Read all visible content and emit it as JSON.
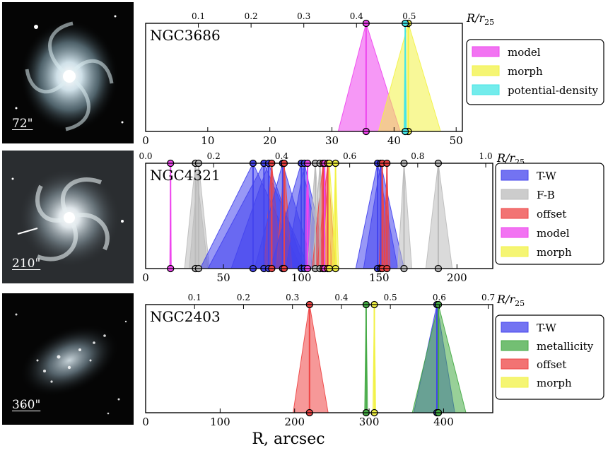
{
  "figure": {
    "xlabel": "R, arcsec"
  },
  "chart_data": [
    {
      "type": "range-triangles",
      "galaxy": "NGC3686",
      "image_scale": "72\"",
      "xlim": [
        0,
        51
      ],
      "xticks": [
        0,
        10,
        20,
        30,
        40,
        50
      ],
      "top_axis_label": "R/r25",
      "top_ticks": [
        0.1,
        0.2,
        0.3,
        0.4,
        0.5
      ],
      "top_tick_labels": [
        "0.1",
        "0.2",
        "0.3",
        "0.4",
        "0.5"
      ],
      "top_scale_per_unit": 0.01178,
      "legend": [
        {
          "label": "model",
          "color": "#ee44ee"
        },
        {
          "label": "morph",
          "color": "#f2f244"
        },
        {
          "label": "potential-density",
          "color": "#44e6e6"
        }
      ],
      "markers": [
        {
          "method": "model",
          "color": "#ee44ee",
          "r": 35.5,
          "lo": 31,
          "hi": 41
        },
        {
          "method": "morph",
          "color": "#f2f244",
          "r": 42.3,
          "lo": 37.5,
          "hi": 47.5
        },
        {
          "method": "potential-density",
          "color": "#44e6e6",
          "r": 41.8,
          "lo": 41.6,
          "hi": 42
        }
      ]
    },
    {
      "type": "range-triangles",
      "galaxy": "NGC4321",
      "image_scale": "210\"",
      "xlim": [
        0,
        223
      ],
      "xticks": [
        0,
        50,
        100,
        150,
        200
      ],
      "top_axis_label": "R/r25",
      "top_ticks": [
        0,
        0.2,
        0.4,
        0.6,
        0.8,
        1.0
      ],
      "top_tick_labels": [
        "0.0",
        "0.2",
        "0.4",
        "0.6",
        "0.8",
        "1.0"
      ],
      "top_scale_per_unit": 0.004577,
      "legend": [
        {
          "label": "T-W",
          "color": "#4444ee"
        },
        {
          "label": "F-B",
          "color": "#bbbbbb"
        },
        {
          "label": "offset",
          "color": "#ee4444"
        },
        {
          "label": "model",
          "color": "#ee44ee"
        },
        {
          "label": "morph",
          "color": "#f2f244"
        }
      ],
      "markers": [
        {
          "method": "model",
          "color": "#ee44ee",
          "r": 16,
          "lo": 15.5,
          "hi": 16.5
        },
        {
          "method": "F-B",
          "color": "#bbbbbb",
          "r": 32,
          "lo": 25,
          "hi": 40
        },
        {
          "method": "F-B",
          "color": "#bbbbbb",
          "r": 34,
          "lo": 28,
          "hi": 41
        },
        {
          "method": "T-W",
          "color": "#4444ee",
          "r": 69,
          "lo": 35,
          "hi": 100
        },
        {
          "method": "T-W",
          "color": "#4444ee",
          "r": 76,
          "lo": 40,
          "hi": 105
        },
        {
          "method": "T-W",
          "color": "#4444ee",
          "r": 79,
          "lo": 55,
          "hi": 102
        },
        {
          "method": "offset",
          "color": "#ee4444",
          "r": 81,
          "lo": 76,
          "hi": 87
        },
        {
          "method": "T-W",
          "color": "#4444ee",
          "r": 88,
          "lo": 70,
          "hi": 108
        },
        {
          "method": "offset",
          "color": "#ee4444",
          "r": 89,
          "lo": 84,
          "hi": 94
        },
        {
          "method": "T-W",
          "color": "#4444ee",
          "r": 100,
          "lo": 80,
          "hi": 115
        },
        {
          "method": "T-W",
          "color": "#4444ee",
          "r": 102,
          "lo": 90,
          "hi": 117
        },
        {
          "method": "model",
          "color": "#ee44ee",
          "r": 104,
          "lo": 102,
          "hi": 106
        },
        {
          "method": "F-B",
          "color": "#bbbbbb",
          "r": 109,
          "lo": 104,
          "hi": 114
        },
        {
          "method": "F-B",
          "color": "#bbbbbb",
          "r": 112,
          "lo": 107,
          "hi": 117
        },
        {
          "method": "offset",
          "color": "#ee4444",
          "r": 114,
          "lo": 107,
          "hi": 120
        },
        {
          "method": "model",
          "color": "#ee44ee",
          "r": 115,
          "lo": 113,
          "hi": 117
        },
        {
          "method": "offset",
          "color": "#ee4444",
          "r": 117,
          "lo": 110,
          "hi": 122
        },
        {
          "method": "morph",
          "color": "#f2f244",
          "r": 118,
          "lo": 114,
          "hi": 123
        },
        {
          "method": "morph",
          "color": "#f2f244",
          "r": 122,
          "lo": 120,
          "hi": 124
        },
        {
          "method": "T-W",
          "color": "#4444ee",
          "r": 149,
          "lo": 135,
          "hi": 162
        },
        {
          "method": "T-W",
          "color": "#4444ee",
          "r": 151,
          "lo": 140,
          "hi": 166
        },
        {
          "method": "offset",
          "color": "#ee4444",
          "r": 152,
          "lo": 150,
          "hi": 154
        },
        {
          "method": "offset",
          "color": "#ee4444",
          "r": 155,
          "lo": 153,
          "hi": 157
        },
        {
          "method": "F-B",
          "color": "#bbbbbb",
          "r": 166,
          "lo": 162,
          "hi": 171
        },
        {
          "method": "F-B",
          "color": "#bbbbbb",
          "r": 188,
          "lo": 180,
          "hi": 197
        }
      ]
    },
    {
      "type": "range-triangles",
      "galaxy": "NGC2403",
      "image_scale": "360\"",
      "xlim": [
        0,
        466
      ],
      "xticks": [
        0,
        100,
        200,
        300,
        400
      ],
      "top_axis_label": "R/r25",
      "top_ticks": [
        0.1,
        0.2,
        0.3,
        0.4,
        0.5,
        0.6,
        0.7
      ],
      "top_tick_labels": [
        "0.1",
        "0.2",
        "0.3",
        "0.4",
        "0.5",
        "0.6",
        "0.7"
      ],
      "top_scale_per_unit": 0.001522,
      "legend": [
        {
          "label": "T-W",
          "color": "#4444ee"
        },
        {
          "label": "metallicity",
          "color": "#44aa44"
        },
        {
          "label": "offset",
          "color": "#ee4444"
        },
        {
          "label": "morph",
          "color": "#f2f244"
        }
      ],
      "markers": [
        {
          "method": "offset",
          "color": "#ee4444",
          "r": 220,
          "lo": 198,
          "hi": 245
        },
        {
          "method": "metallicity",
          "color": "#44aa44",
          "r": 296,
          "lo": 294,
          "hi": 298
        },
        {
          "method": "morph",
          "color": "#f2f244",
          "r": 307,
          "lo": 305,
          "hi": 309
        },
        {
          "method": "T-W",
          "color": "#4444ee",
          "r": 391,
          "lo": 360,
          "hi": 415
        },
        {
          "method": "metallicity",
          "color": "#44aa44",
          "r": 393,
          "lo": 358,
          "hi": 430
        }
      ]
    }
  ]
}
